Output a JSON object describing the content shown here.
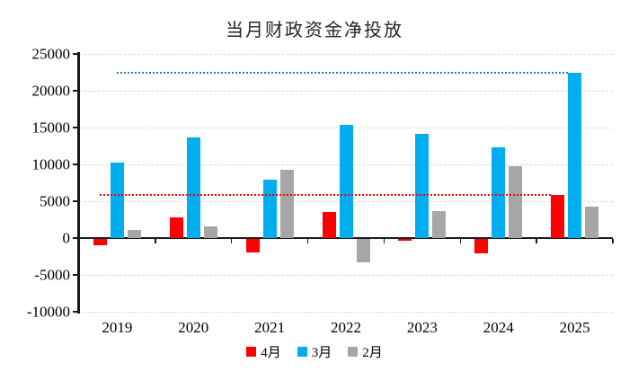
{
  "title": "当月财政资金净投放",
  "legend": [
    {
      "label": "4月",
      "color": "#FF0000"
    },
    {
      "label": "3月",
      "color": "#00AEEF"
    },
    {
      "label": "2月",
      "color": "#A6A6A6"
    }
  ],
  "colors": {
    "april_red": "#FF0000",
    "march_blue": "#00AEEF",
    "feb_gray": "#A6A6A6",
    "blue_ref_line": "#2E75B6",
    "red_ref_line": "#FF0000",
    "gridline": "#D9D9D9",
    "axis": "#1A1A1A"
  },
  "chart_data": {
    "type": "bar",
    "title": "当月财政资金净投放",
    "categories": [
      "2019",
      "2020",
      "2021",
      "2022",
      "2023",
      "2024",
      "2025"
    ],
    "series": [
      {
        "name": "4月",
        "color": "#FF0000",
        "values": [
          -800,
          2800,
          -1800,
          3500,
          -300,
          -1900,
          5900
        ]
      },
      {
        "name": "3月",
        "color": "#00AEEF",
        "values": [
          10300,
          13600,
          7900,
          15400,
          14200,
          12300,
          22500
        ]
      },
      {
        "name": "2月",
        "color": "#A6A6A6",
        "values": [
          1100,
          1600,
          9300,
          -3200,
          3600,
          9700,
          4300
        ]
      }
    ],
    "ylim": [
      -10000,
      25000
    ],
    "ytick_step": 5000,
    "yticks": [
      -10000,
      -5000,
      0,
      5000,
      10000,
      15000,
      20000,
      25000
    ],
    "grid": true,
    "legend_position": "bottom",
    "reference_lines": [
      {
        "value": 22500,
        "color": "#2E75B6",
        "style": "dotted",
        "series": "3月"
      },
      {
        "value": 5900,
        "color": "#FF0000",
        "style": "dotted",
        "series": "4月"
      }
    ]
  }
}
